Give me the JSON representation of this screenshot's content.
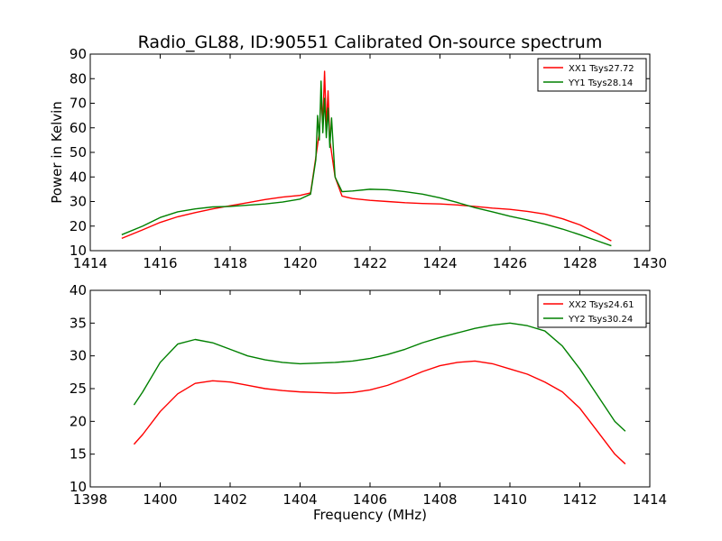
{
  "figure": {
    "title": "Radio_GL88, ID:90551 Calibrated On-source spectrum",
    "ylabel": "Power in Kelvin",
    "xlabel": "Frequency (MHz)"
  },
  "chart_data": [
    {
      "type": "line",
      "title": "Radio_GL88, ID:90551 Calibrated On-source spectrum",
      "xlabel": "",
      "ylabel": "Power in Kelvin",
      "xlim": [
        1414,
        1430
      ],
      "ylim": [
        10,
        90
      ],
      "xticks": [
        1414,
        1416,
        1418,
        1420,
        1422,
        1424,
        1426,
        1428,
        1430
      ],
      "yticks": [
        10,
        20,
        30,
        40,
        50,
        60,
        70,
        80,
        90
      ],
      "grid": false,
      "legend_position": "top-right",
      "series": [
        {
          "name": "XX1 Tsys27.72",
          "color": "#ff0000",
          "x": [
            1414.9,
            1415.5,
            1416.0,
            1416.5,
            1417.0,
            1417.5,
            1418.0,
            1418.5,
            1419.0,
            1419.5,
            1420.0,
            1420.3,
            1420.45,
            1420.55,
            1420.6,
            1420.65,
            1420.7,
            1420.75,
            1420.8,
            1420.85,
            1420.9,
            1421.0,
            1421.2,
            1421.5,
            1422.0,
            1422.5,
            1423.0,
            1423.5,
            1424.0,
            1424.5,
            1425.0,
            1425.5,
            1426.0,
            1426.5,
            1427.0,
            1427.5,
            1428.0,
            1428.5,
            1428.9
          ],
          "y": [
            15.0,
            18.5,
            21.5,
            23.8,
            25.5,
            27.0,
            28.3,
            29.5,
            30.8,
            31.8,
            32.5,
            33.5,
            48,
            58,
            72,
            62,
            83,
            60,
            75,
            55,
            50,
            40,
            32.2,
            31.2,
            30.5,
            30.0,
            29.5,
            29.2,
            29.0,
            28.6,
            28.0,
            27.3,
            26.8,
            26.0,
            24.9,
            23.0,
            20.5,
            17.0,
            14.0
          ]
        },
        {
          "name": "YY1 Tsys28.14",
          "color": "#008000",
          "x": [
            1414.9,
            1415.5,
            1416.0,
            1416.5,
            1417.0,
            1417.5,
            1418.0,
            1418.5,
            1419.0,
            1419.5,
            1420.0,
            1420.3,
            1420.45,
            1420.5,
            1420.55,
            1420.6,
            1420.65,
            1420.7,
            1420.75,
            1420.8,
            1420.85,
            1420.9,
            1421.0,
            1421.2,
            1421.5,
            1422.0,
            1422.5,
            1423.0,
            1423.5,
            1424.0,
            1424.5,
            1425.0,
            1425.5,
            1426.0,
            1426.5,
            1427.0,
            1427.5,
            1428.0,
            1428.5,
            1428.9
          ],
          "y": [
            16.5,
            20.0,
            23.5,
            25.8,
            27.0,
            27.8,
            28.0,
            28.5,
            29.0,
            29.8,
            31.0,
            33.0,
            47,
            65,
            55,
            79,
            58,
            72,
            56,
            68,
            52,
            64,
            40,
            34.0,
            34.3,
            35.0,
            34.8,
            34.0,
            33.0,
            31.5,
            29.6,
            27.5,
            25.8,
            24.0,
            22.5,
            20.8,
            18.8,
            16.5,
            14.0,
            12.0
          ]
        }
      ]
    },
    {
      "type": "line",
      "title": "",
      "xlabel": "Frequency (MHz)",
      "ylabel": "",
      "xlim": [
        1398,
        1414
      ],
      "ylim": [
        10,
        40
      ],
      "xticks": [
        1398,
        1400,
        1402,
        1404,
        1406,
        1408,
        1410,
        1412,
        1414
      ],
      "yticks": [
        10,
        15,
        20,
        25,
        30,
        35,
        40
      ],
      "grid": false,
      "legend_position": "top-right",
      "series": [
        {
          "name": "XX2 Tsys24.61",
          "color": "#ff0000",
          "x": [
            1399.25,
            1399.5,
            1400.0,
            1400.5,
            1401.0,
            1401.5,
            1402.0,
            1402.5,
            1403.0,
            1403.5,
            1404.0,
            1404.5,
            1405.0,
            1405.5,
            1406.0,
            1406.5,
            1407.0,
            1407.5,
            1408.0,
            1408.5,
            1409.0,
            1409.5,
            1410.0,
            1410.5,
            1411.0,
            1411.5,
            1412.0,
            1412.5,
            1413.0,
            1413.3
          ],
          "y": [
            16.5,
            18.0,
            21.5,
            24.2,
            25.8,
            26.2,
            26.0,
            25.5,
            25.0,
            24.7,
            24.5,
            24.4,
            24.3,
            24.4,
            24.8,
            25.5,
            26.5,
            27.6,
            28.5,
            29.0,
            29.2,
            28.8,
            28.0,
            27.2,
            26.0,
            24.5,
            22.0,
            18.5,
            15.0,
            13.5
          ]
        },
        {
          "name": "YY2 Tsys30.24",
          "color": "#008000",
          "x": [
            1399.25,
            1399.5,
            1400.0,
            1400.5,
            1401.0,
            1401.5,
            1402.0,
            1402.5,
            1403.0,
            1403.5,
            1404.0,
            1404.5,
            1405.0,
            1405.5,
            1406.0,
            1406.5,
            1407.0,
            1407.5,
            1408.0,
            1408.5,
            1409.0,
            1409.5,
            1410.0,
            1410.5,
            1411.0,
            1411.5,
            1412.0,
            1412.5,
            1413.0,
            1413.3
          ],
          "y": [
            22.5,
            24.5,
            29.0,
            31.8,
            32.5,
            32.0,
            31.0,
            30.0,
            29.4,
            29.0,
            28.8,
            28.9,
            29.0,
            29.2,
            29.6,
            30.2,
            31.0,
            32.0,
            32.8,
            33.5,
            34.2,
            34.7,
            35.0,
            34.6,
            33.8,
            31.5,
            28.0,
            24.0,
            20.0,
            18.5
          ]
        }
      ]
    }
  ]
}
